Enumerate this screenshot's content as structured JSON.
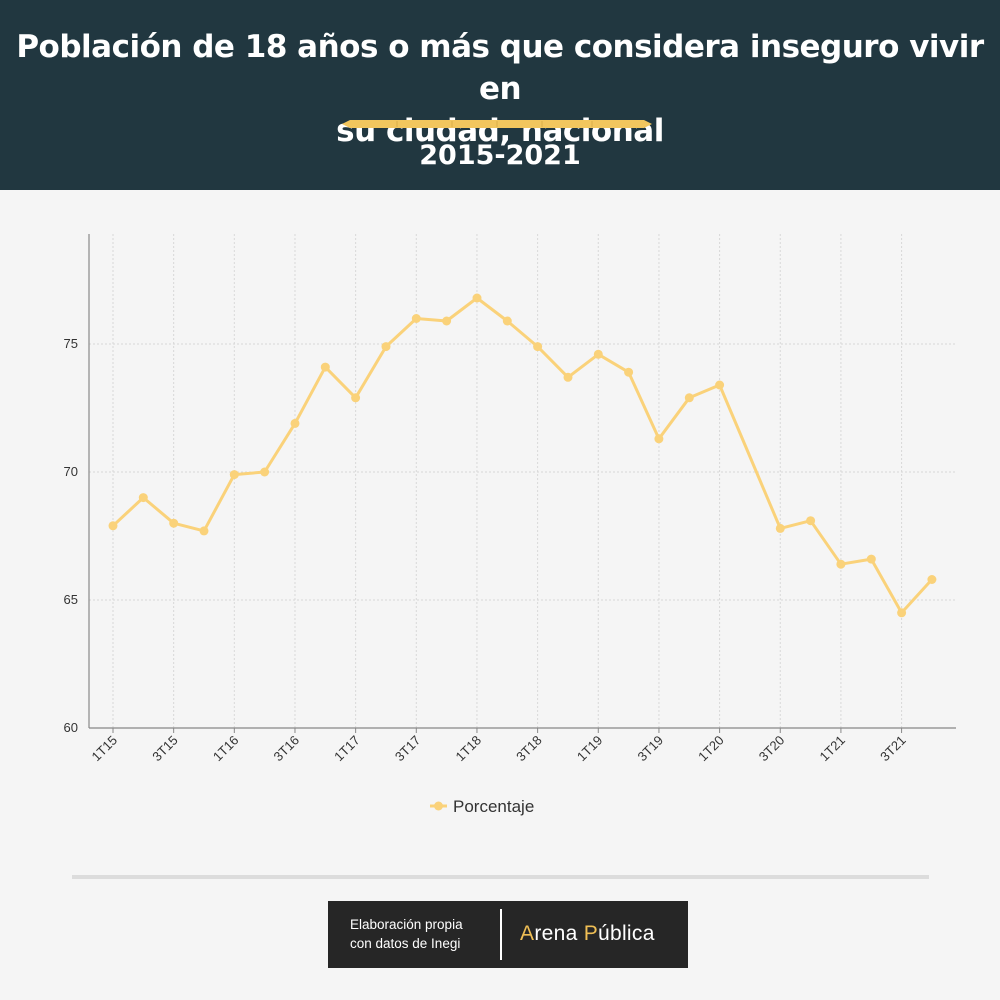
{
  "header": {
    "title_line1": "Población de 18 años o más que considera inseguro vivir en",
    "title_line2": "su ciudad, nacional",
    "subtitle": "2015-2021"
  },
  "chart_data": {
    "type": "line",
    "title": "Población de 18 años o más que considera inseguro vivir en su ciudad, nacional",
    "subtitle": "2015-2021",
    "x": [
      "1T15",
      "2T15",
      "3T15",
      "4T15",
      "1T16",
      "2T16",
      "3T16",
      "4T16",
      "1T17",
      "2T17",
      "3T17",
      "4T17",
      "1T18",
      "2T18",
      "3T18",
      "4T18",
      "1T19",
      "2T19",
      "3T19",
      "4T19",
      "1T20",
      "2T20",
      "3T20",
      "4T20",
      "1T21",
      "2T21",
      "3T21",
      "4T21"
    ],
    "x_tick_labels": [
      "1T15",
      "3T15",
      "1T16",
      "3T16",
      "1T17",
      "3T17",
      "1T18",
      "3T18",
      "1T19",
      "3T19",
      "1T20",
      "3T20",
      "1T21",
      "3T21"
    ],
    "series": [
      {
        "name": "Porcentaje",
        "color": "#fad27a",
        "values": [
          67.9,
          69.0,
          68.0,
          67.7,
          69.9,
          70.0,
          71.9,
          74.1,
          72.9,
          74.9,
          76.0,
          75.9,
          76.8,
          75.9,
          74.9,
          73.7,
          74.6,
          73.9,
          71.3,
          72.9,
          73.4,
          null,
          67.8,
          68.1,
          66.4,
          66.6,
          64.5,
          65.8
        ]
      }
    ],
    "y_ticks": [
      60,
      65,
      70,
      75
    ],
    "ylim": [
      60,
      79.3
    ],
    "grid": true,
    "legend_position": "bottom-center",
    "xlabel": "",
    "ylabel": ""
  },
  "footer": {
    "credit_line1": "Elaboración propia",
    "credit_line2": "con datos de Inegi",
    "brand_initial1": "A",
    "brand_rest1": "rena ",
    "brand_initial2": "P",
    "brand_rest2": "ública",
    "brand_accent": "#f0bf55"
  }
}
